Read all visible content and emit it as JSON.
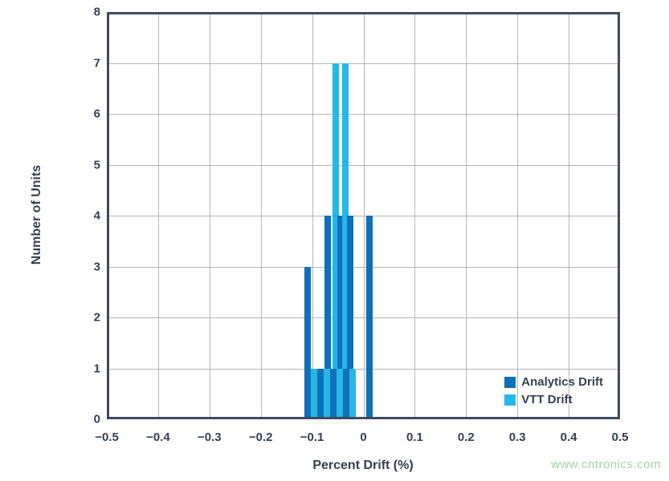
{
  "watermark": {
    "text": "www.cntronics.com",
    "color": "#9fd4a4"
  },
  "chart_data": {
    "type": "bar",
    "subtype": "overlaid-histograms",
    "title": "",
    "xlabel": "Percent Drift (%)",
    "ylabel": "Number of Units",
    "xlim": [
      -0.5,
      0.5
    ],
    "ylim": [
      0,
      8
    ],
    "grid": true,
    "legend_position": "inside-bottom-right",
    "frame_color": "#3e4a5e",
    "grid_color": "#b5b5ba",
    "text_color": "#343f52",
    "x_tick_values": [
      -0.5,
      -0.4,
      -0.3,
      -0.2,
      -0.1,
      0,
      0.1,
      0.2,
      0.3,
      0.4,
      0.5
    ],
    "x_tick_labels": [
      "−0.5",
      "−0.4",
      "−0.3",
      "−0.2",
      "−0.1",
      "0",
      "0.1",
      "0.2",
      "0.3",
      "0.4",
      "0.5"
    ],
    "y_tick_values": [
      0,
      1,
      2,
      3,
      4,
      5,
      6,
      7,
      8
    ],
    "y_tick_labels": [
      "0",
      "1",
      "2",
      "3",
      "4",
      "5",
      "6",
      "7",
      "8"
    ],
    "bin_width": 0.0125,
    "series": [
      {
        "name": "Analytics Drift",
        "color": "#0f6fb7"
      },
      {
        "name": "VTT Drift",
        "color": "#26b7e9"
      }
    ],
    "bars": [
      {
        "series": 0,
        "x_left": -0.115,
        "count": 3
      },
      {
        "series": 1,
        "x_left": -0.1025,
        "count": 1
      },
      {
        "series": 0,
        "x_left": -0.09,
        "count": 1
      },
      {
        "series": 0,
        "x_left": -0.0759,
        "count": 4
      },
      {
        "series": 1,
        "x_left": -0.0775,
        "count": 1
      },
      {
        "series": 1,
        "x_left": -0.0603,
        "count": 7
      },
      {
        "series": 0,
        "x_left": -0.0649,
        "count": 1
      },
      {
        "series": 0,
        "x_left": -0.0509,
        "count": 4
      },
      {
        "series": 1,
        "x_left": -0.0524,
        "count": 1
      },
      {
        "series": 1,
        "x_left": -0.0415,
        "count": 7
      },
      {
        "series": 0,
        "x_left": -0.0399,
        "count": 1
      },
      {
        "series": 0,
        "x_left": -0.0321,
        "count": 4
      },
      {
        "series": 1,
        "x_left": -0.0274,
        "count": 1
      },
      {
        "series": 0,
        "x_left": 0.0055,
        "count": 4
      }
    ]
  }
}
